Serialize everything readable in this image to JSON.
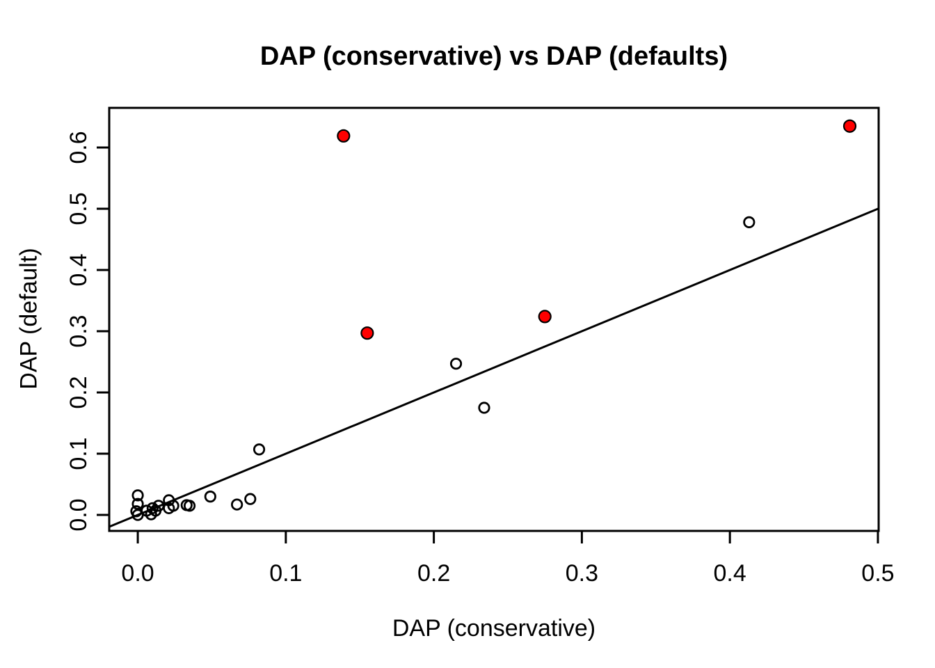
{
  "figure": {
    "title": "DAP (conservative) vs DAP (defaults)",
    "xlabel": "DAP (conservative)",
    "ylabel": "DAP (default)"
  },
  "colors": {
    "foreground": "#000000",
    "background": "#ffffff",
    "highlight_fill": "#ff0000"
  },
  "chart_data": {
    "type": "scatter",
    "title": "DAP (conservative) vs DAP (defaults)",
    "xlabel": "DAP (conservative)",
    "ylabel": "DAP (default)",
    "xlim": [
      -0.0193,
      0.5005
    ],
    "ylim": [
      -0.0261,
      0.6648
    ],
    "grid": false,
    "legend": "none",
    "x_ticks": {
      "values": [
        0.0,
        0.1,
        0.2,
        0.3,
        0.4,
        0.5
      ],
      "labels": [
        "0.0",
        "0.1",
        "0.2",
        "0.3",
        "0.4",
        "0.5"
      ]
    },
    "y_ticks": {
      "values": [
        0.0,
        0.1,
        0.2,
        0.3,
        0.4,
        0.5,
        0.6
      ],
      "labels": [
        "0.0",
        "0.1",
        "0.2",
        "0.3",
        "0.4",
        "0.5",
        "0.6"
      ]
    },
    "reference_line": {
      "slope": 1,
      "intercept": 0,
      "style": "solid",
      "color": "#000000"
    },
    "series": [
      {
        "name": "default-points",
        "marker": "open-circle",
        "stroke": "#000000",
        "fill": "none",
        "points": [
          [
            0.0,
            0.032
          ],
          [
            0.0,
            0.018
          ],
          [
            -0.001,
            0.006
          ],
          [
            0.0,
            0.0
          ],
          [
            0.006,
            0.007
          ],
          [
            0.009,
            0.001
          ],
          [
            0.01,
            0.011
          ],
          [
            0.012,
            0.007
          ],
          [
            0.014,
            0.015
          ],
          [
            0.021,
            0.024
          ],
          [
            0.021,
            0.011
          ],
          [
            0.024,
            0.015
          ],
          [
            0.033,
            0.016
          ],
          [
            0.035,
            0.015
          ],
          [
            0.049,
            0.03
          ],
          [
            0.067,
            0.017
          ],
          [
            0.076,
            0.026
          ],
          [
            0.082,
            0.107
          ],
          [
            0.215,
            0.247
          ],
          [
            0.234,
            0.175
          ],
          [
            0.413,
            0.478
          ]
        ]
      },
      {
        "name": "highlighted-points",
        "marker": "filled-circle",
        "stroke": "#000000",
        "fill": "#ff0000",
        "points": [
          [
            0.139,
            0.619
          ],
          [
            0.155,
            0.297
          ],
          [
            0.275,
            0.324
          ],
          [
            0.481,
            0.635
          ]
        ]
      }
    ]
  }
}
